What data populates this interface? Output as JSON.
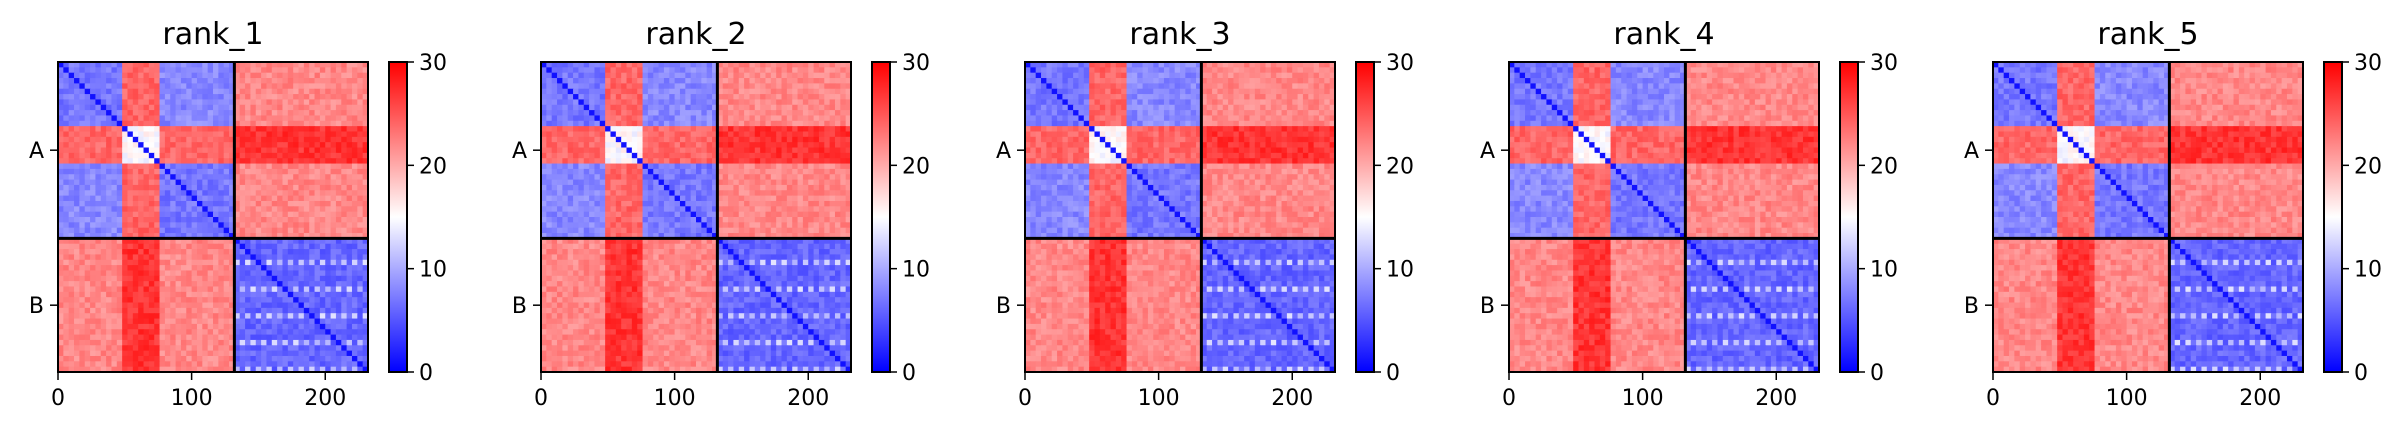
{
  "chart_data": [
    {
      "type": "heatmap",
      "title": "rank_1",
      "matrix_size": 232,
      "chain_breaks": [
        132
      ],
      "x_ticks": [
        0,
        100,
        200
      ],
      "y_tick_labels": [
        "A",
        "B"
      ],
      "colorbar": {
        "min": 0,
        "max": 30,
        "ticks": [
          0,
          10,
          20,
          30
        ],
        "colormap": "bwr"
      },
      "xlim": [
        0,
        232
      ],
      "ylim": [
        232,
        0
      ]
    },
    {
      "type": "heatmap",
      "title": "rank_2",
      "matrix_size": 232,
      "chain_breaks": [
        132
      ],
      "x_ticks": [
        0,
        100,
        200
      ],
      "y_tick_labels": [
        "A",
        "B"
      ],
      "colorbar": {
        "min": 0,
        "max": 30,
        "ticks": [
          0,
          10,
          20,
          30
        ],
        "colormap": "bwr"
      },
      "xlim": [
        0,
        232
      ],
      "ylim": [
        232,
        0
      ]
    },
    {
      "type": "heatmap",
      "title": "rank_3",
      "matrix_size": 232,
      "chain_breaks": [
        132
      ],
      "x_ticks": [
        0,
        100,
        200
      ],
      "y_tick_labels": [
        "A",
        "B"
      ],
      "colorbar": {
        "min": 0,
        "max": 30,
        "ticks": [
          0,
          10,
          20,
          30
        ],
        "colormap": "bwr"
      },
      "xlim": [
        0,
        232
      ],
      "ylim": [
        232,
        0
      ]
    },
    {
      "type": "heatmap",
      "title": "rank_4",
      "matrix_size": 232,
      "chain_breaks": [
        132
      ],
      "x_ticks": [
        0,
        100,
        200
      ],
      "y_tick_labels": [
        "A",
        "B"
      ],
      "colorbar": {
        "min": 0,
        "max": 30,
        "ticks": [
          0,
          10,
          20,
          30
        ],
        "colormap": "bwr"
      },
      "xlim": [
        0,
        232
      ],
      "ylim": [
        232,
        0
      ]
    },
    {
      "type": "heatmap",
      "title": "rank_5",
      "matrix_size": 232,
      "chain_breaks": [
        132
      ],
      "x_ticks": [
        0,
        100,
        200
      ],
      "y_tick_labels": [
        "A",
        "B"
      ],
      "colorbar": {
        "min": 0,
        "max": 30,
        "ticks": [
          0,
          10,
          20,
          30
        ],
        "colormap": "bwr"
      },
      "xlim": [
        0,
        232
      ],
      "ylim": [
        232,
        0
      ]
    }
  ],
  "colors": {
    "low": "#0000ff",
    "mid": "#ffffff",
    "high": "#ff0000",
    "divider": "#000000"
  }
}
